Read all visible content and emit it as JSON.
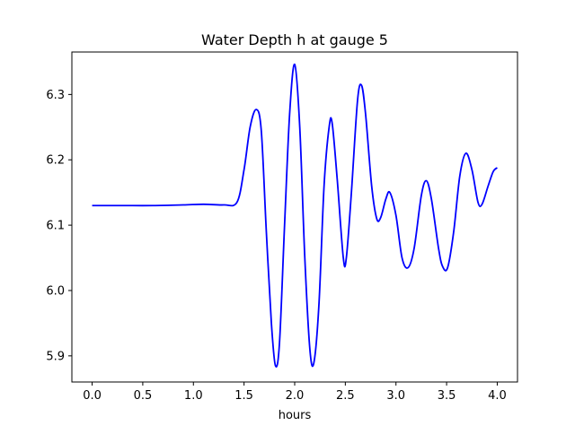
{
  "chart_data": {
    "type": "line",
    "title": "Water Depth h at gauge 5",
    "xlabel": "hours",
    "ylabel": "",
    "xlim": [
      -0.2,
      4.2
    ],
    "ylim": [
      5.86,
      6.365
    ],
    "xticks": [
      0.0,
      0.5,
      1.0,
      1.5,
      2.0,
      2.5,
      3.0,
      3.5,
      4.0
    ],
    "xtick_labels": [
      "0.0",
      "0.5",
      "1.0",
      "1.5",
      "2.0",
      "2.5",
      "3.0",
      "3.5",
      "4.0"
    ],
    "yticks": [
      5.9,
      6.0,
      6.1,
      6.2,
      6.3
    ],
    "ytick_labels": [
      "5.9",
      "6.0",
      "6.1",
      "6.2",
      "6.3"
    ],
    "grid": false,
    "series": [
      {
        "color": "#0000ff",
        "points": [
          [
            0.0,
            6.13
          ],
          [
            0.3,
            6.13
          ],
          [
            0.6,
            6.13
          ],
          [
            0.9,
            6.131
          ],
          [
            1.1,
            6.132
          ],
          [
            1.3,
            6.131
          ],
          [
            1.43,
            6.135
          ],
          [
            1.5,
            6.185
          ],
          [
            1.56,
            6.25
          ],
          [
            1.62,
            6.277
          ],
          [
            1.67,
            6.245
          ],
          [
            1.72,
            6.09
          ],
          [
            1.77,
            5.95
          ],
          [
            1.81,
            5.885
          ],
          [
            1.85,
            5.92
          ],
          [
            1.9,
            6.1
          ],
          [
            1.95,
            6.27
          ],
          [
            2.0,
            6.346
          ],
          [
            2.05,
            6.25
          ],
          [
            2.1,
            6.05
          ],
          [
            2.15,
            5.91
          ],
          [
            2.19,
            5.89
          ],
          [
            2.24,
            5.98
          ],
          [
            2.29,
            6.16
          ],
          [
            2.34,
            6.25
          ],
          [
            2.37,
            6.256
          ],
          [
            2.42,
            6.17
          ],
          [
            2.48,
            6.05
          ],
          [
            2.51,
            6.05
          ],
          [
            2.56,
            6.15
          ],
          [
            2.62,
            6.29
          ],
          [
            2.66,
            6.314
          ],
          [
            2.7,
            6.27
          ],
          [
            2.76,
            6.16
          ],
          [
            2.81,
            6.11
          ],
          [
            2.85,
            6.112
          ],
          [
            2.9,
            6.14
          ],
          [
            2.94,
            6.15
          ],
          [
            3.0,
            6.115
          ],
          [
            3.06,
            6.05
          ],
          [
            3.12,
            6.035
          ],
          [
            3.18,
            6.065
          ],
          [
            3.25,
            6.145
          ],
          [
            3.3,
            6.168
          ],
          [
            3.35,
            6.14
          ],
          [
            3.42,
            6.065
          ],
          [
            3.46,
            6.037
          ],
          [
            3.51,
            6.035
          ],
          [
            3.57,
            6.09
          ],
          [
            3.63,
            6.175
          ],
          [
            3.69,
            6.21
          ],
          [
            3.75,
            6.185
          ],
          [
            3.81,
            6.135
          ],
          [
            3.85,
            6.132
          ],
          [
            3.91,
            6.16
          ],
          [
            3.96,
            6.182
          ],
          [
            4.0,
            6.188
          ]
        ]
      }
    ]
  }
}
